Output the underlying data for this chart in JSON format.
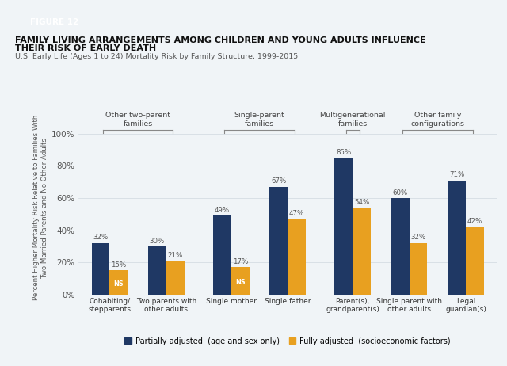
{
  "title_line1": "FAMILY LIVING ARRANGEMENTS AMONG CHILDREN AND YOUNG ADULTS INFLUENCE",
  "title_line2": "THEIR RISK OF EARLY DEATH",
  "subtitle": "U.S. Early Life (Ages 1 to 24) Mortality Risk by Family Structure, 1999-2015",
  "figure_label": "FIGURE 12",
  "ylabel": "Percent Higher Mortality Risk Relative to Families With\nTwo Married Parents and No Other Adults",
  "categories": [
    "Cohabiting/\nstepparents",
    "Two parents with\nother adults",
    "Single mother",
    "Single father",
    "Parent(s),\ngrandparent(s)",
    "Single parent with\nother adults",
    "Legal\nguardian(s)"
  ],
  "partial_values": [
    32,
    30,
    49,
    67,
    85,
    60,
    71
  ],
  "full_values": [
    15,
    21,
    17,
    47,
    54,
    32,
    42
  ],
  "ns_flags": [
    true,
    false,
    true,
    false,
    false,
    false,
    false
  ],
  "partial_color": "#1f3864",
  "full_color": "#e8a020",
  "group_labels": [
    "Other two-parent\nfamilies",
    "Single-parent\nfamilies",
    "Multigenerational\nfamilies",
    "Other family\nconfigurations"
  ],
  "yticks": [
    0,
    20,
    40,
    60,
    80,
    100
  ],
  "ytick_labels": [
    "0%",
    "20%",
    "40%",
    "60%",
    "80%",
    "100%"
  ],
  "legend_partial": "Partially adjusted  (age and sex only)",
  "legend_full": "Fully adjusted  (socioeconomic factors)",
  "bg_color": "#f0f4f7",
  "figure_label_bg": "#2a9ab4",
  "figure_label_color": "#ffffff"
}
